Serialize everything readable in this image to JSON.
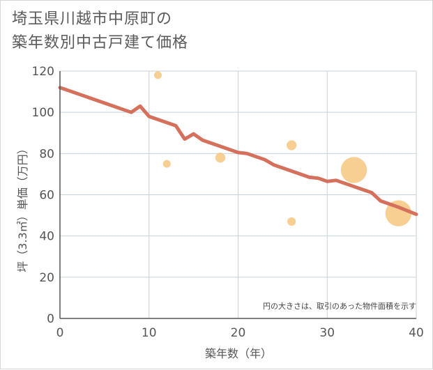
{
  "chart_data": {
    "type": "scatter",
    "title": "埼玉県川越市中原町の\n築年数別中古戸建て価格",
    "xlabel": "築年数（年）",
    "ylabel": "坪（3.3㎡）単価（万円）",
    "xlim": [
      0,
      40
    ],
    "ylim": [
      0,
      120
    ],
    "xticks": [
      0,
      10,
      20,
      30,
      40
    ],
    "yticks": [
      0,
      20,
      40,
      60,
      80,
      100,
      120
    ],
    "grid": true,
    "note": "円の大きさは、取引のあった物件面積を示す",
    "series": [
      {
        "name": "取引事例",
        "kind": "bubble",
        "color": "#f5c57a",
        "points": [
          {
            "x": 11,
            "y": 118,
            "size": 1
          },
          {
            "x": 12,
            "y": 75,
            "size": 1
          },
          {
            "x": 18,
            "y": 78,
            "size": 1.3
          },
          {
            "x": 26,
            "y": 84,
            "size": 1.3
          },
          {
            "x": 26,
            "y": 47,
            "size": 1.1
          },
          {
            "x": 33,
            "y": 72,
            "size": 3.4
          },
          {
            "x": 38,
            "y": 51,
            "size": 3.4
          }
        ]
      },
      {
        "name": "平均価格推移",
        "kind": "line",
        "color": "#d4705c",
        "x": [
          0,
          8,
          9,
          10,
          13,
          14,
          15,
          16,
          18,
          20,
          21,
          23,
          24,
          26,
          28,
          29,
          30,
          31,
          33,
          35,
          36,
          38,
          40
        ],
        "y": [
          112,
          100,
          103,
          98,
          93.5,
          87,
          89.5,
          86.5,
          83.5,
          80.5,
          80,
          77,
          74.5,
          71.5,
          68.5,
          68,
          66.5,
          67,
          64,
          61,
          57,
          54,
          50.5
        ]
      }
    ]
  }
}
